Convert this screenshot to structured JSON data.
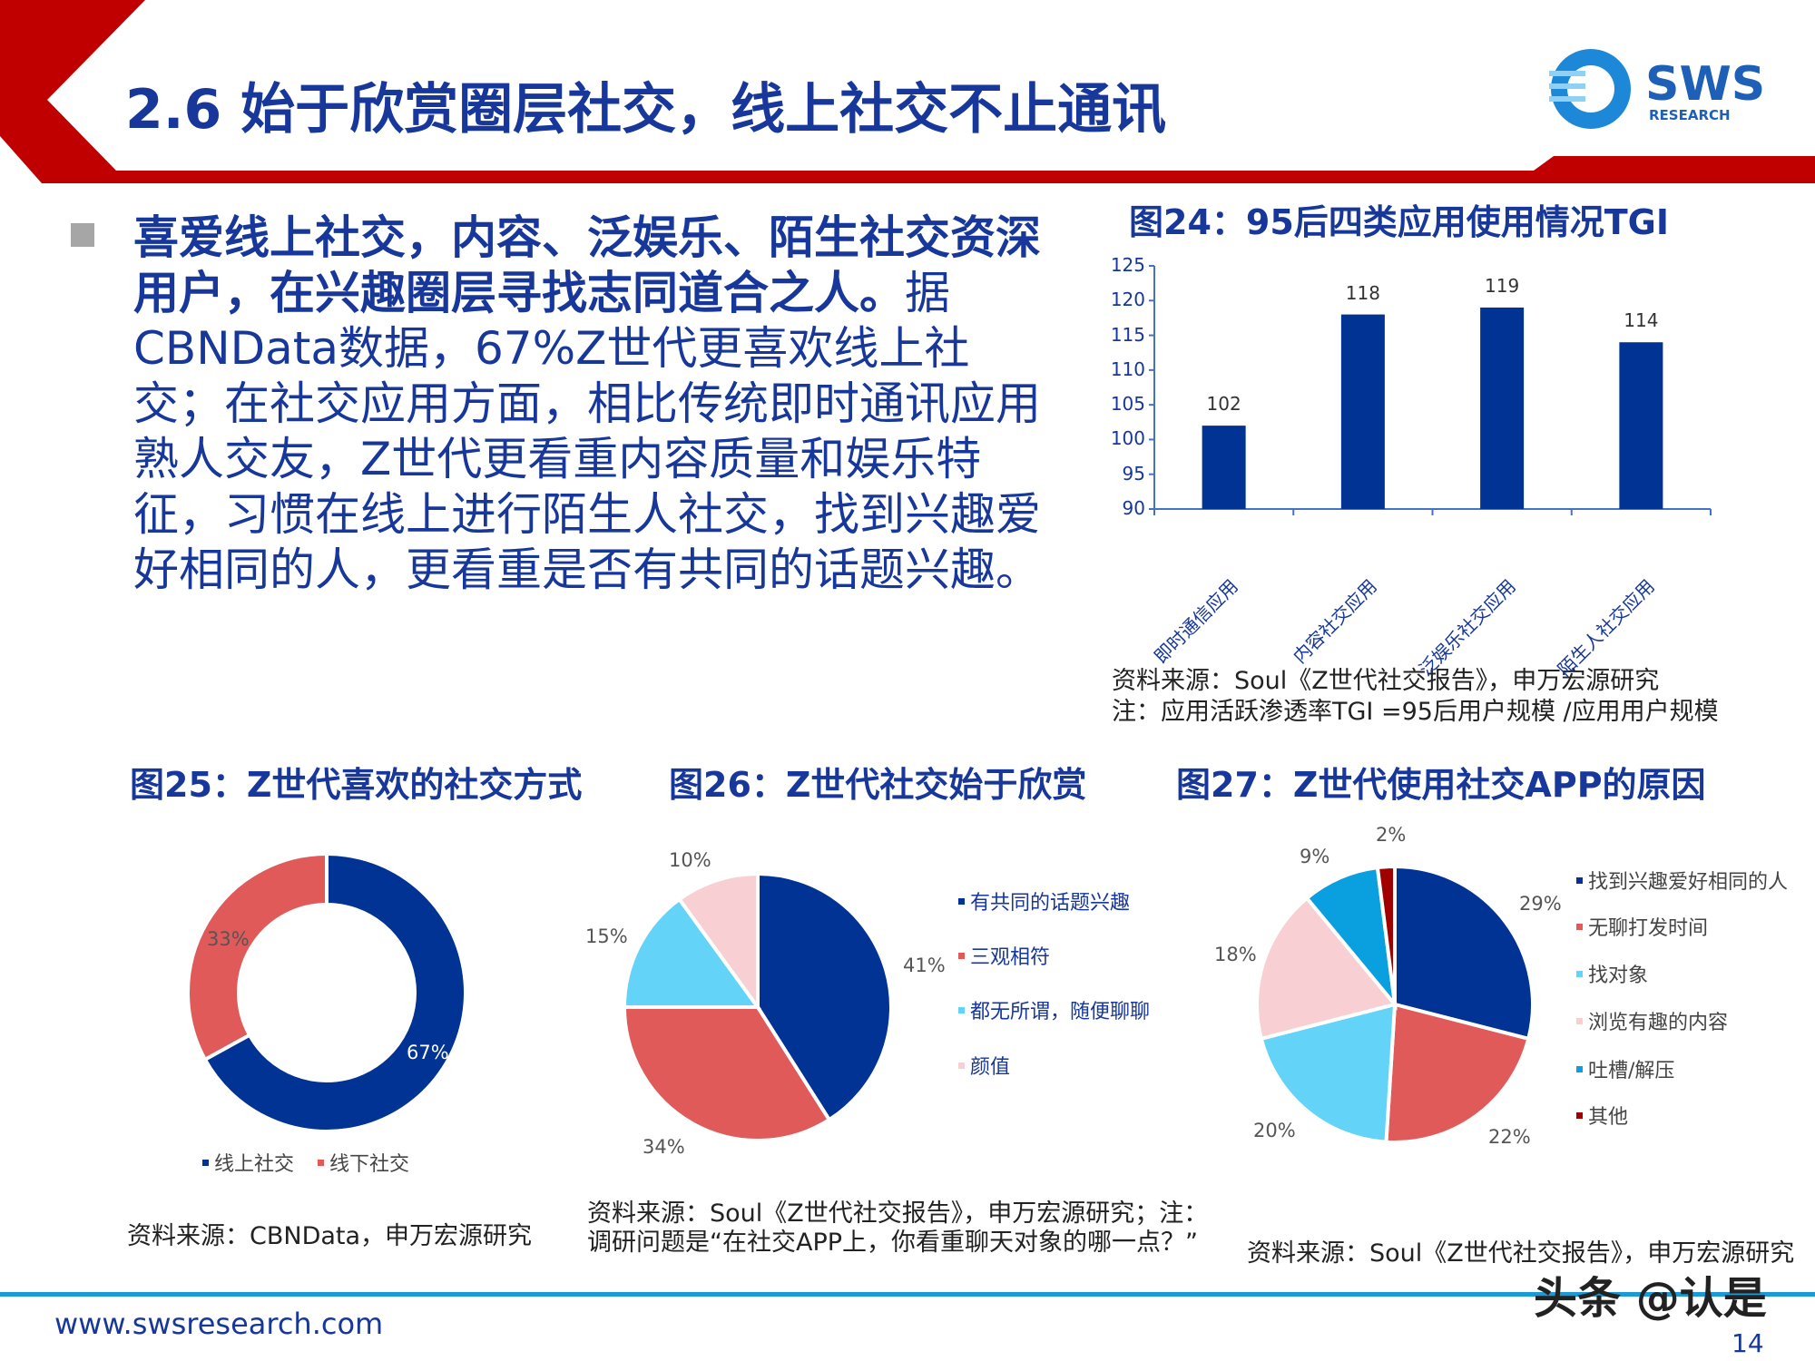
{
  "header": {
    "title": "2.6 始于欣赏圈层社交，线上社交不止通讯",
    "logo_text": "SWS",
    "logo_sub": "RESEARCH"
  },
  "body": {
    "bold": "喜爱线上社交，内容、泛娱乐、陌生社交资深用户，在兴趣圈层寻找志同道合之人。",
    "normal": "据CBNData数据，67%Z世代更喜欢线上社交；在社交应用方面，相比传统即时通讯应用熟人交友，Z世代更看重内容质量和娱乐特征，习惯在线上进行陌生人社交，找到兴趣爱好相同的人，更看重是否有共同的话题兴趣。"
  },
  "colors": {
    "navy": "#003393",
    "red": "#E05A5A",
    "light_blue": "#63D3F8",
    "pink": "#F8D0D3",
    "mid_blue": "#0AA0E0",
    "dark_red": "#A00000",
    "brand_red": "#C00000",
    "title_blue": "#17379A"
  },
  "chart_data": [
    {
      "type": "bar",
      "title": "图24：95后四类应用使用情况TGI",
      "categories": [
        "即时通信应用",
        "内容社交应用",
        "泛娱乐社交应用",
        "陌生人社交应用"
      ],
      "values": [
        102,
        118,
        119,
        114
      ],
      "ylim": [
        90,
        125
      ],
      "yticks": [
        90,
        95,
        100,
        105,
        110,
        115,
        120,
        125
      ],
      "grid": false,
      "source": "资料来源：Soul《Z世代社交报告》，申万宏源研究",
      "note": "注：应用活跃渗透率TGI =95后用户规模 /应用用户规模"
    },
    {
      "type": "pie",
      "donut": true,
      "title": "图25：Z世代喜欢的社交方式",
      "labels": [
        "线上社交",
        "线下社交"
      ],
      "values": [
        67,
        33
      ],
      "value_labels": [
        "67%",
        "33%"
      ],
      "legend_placement": "bottom",
      "source": "资料来源：CBNData，申万宏源研究"
    },
    {
      "type": "pie",
      "title": "图26：Z世代社交始于欣赏",
      "labels": [
        "有共同的话题兴趣",
        "三观相符",
        "都无所谓，随便聊聊",
        "颜值"
      ],
      "values": [
        41,
        34,
        15,
        10
      ],
      "value_labels": [
        "41%",
        "34%",
        "15%",
        "10%"
      ],
      "legend_placement": "right",
      "source_lines": [
        "资料来源：Soul《Z世代社交报告》，申万宏源研究；注：",
        "调研问题是“在社交APP上，你看重聊天对象的哪一点？”"
      ]
    },
    {
      "type": "pie",
      "title": "图27：Z世代使用社交APP的原因",
      "labels": [
        "找到兴趣爱好相同的人",
        "无聊打发时间",
        "找对象",
        "浏览有趣的内容",
        "吐槽/解压",
        "其他"
      ],
      "values": [
        29,
        22,
        20,
        18,
        9,
        2
      ],
      "value_labels": [
        "29%",
        "22%",
        "20%",
        "18%",
        "9%",
        "2%"
      ],
      "legend_placement": "right",
      "source": "资料来源：Soul《Z世代社交报告》，申万宏源研究"
    }
  ],
  "footer": {
    "url": "www.swsresearch.com",
    "page": "14",
    "watermark": "头条 @认是"
  }
}
